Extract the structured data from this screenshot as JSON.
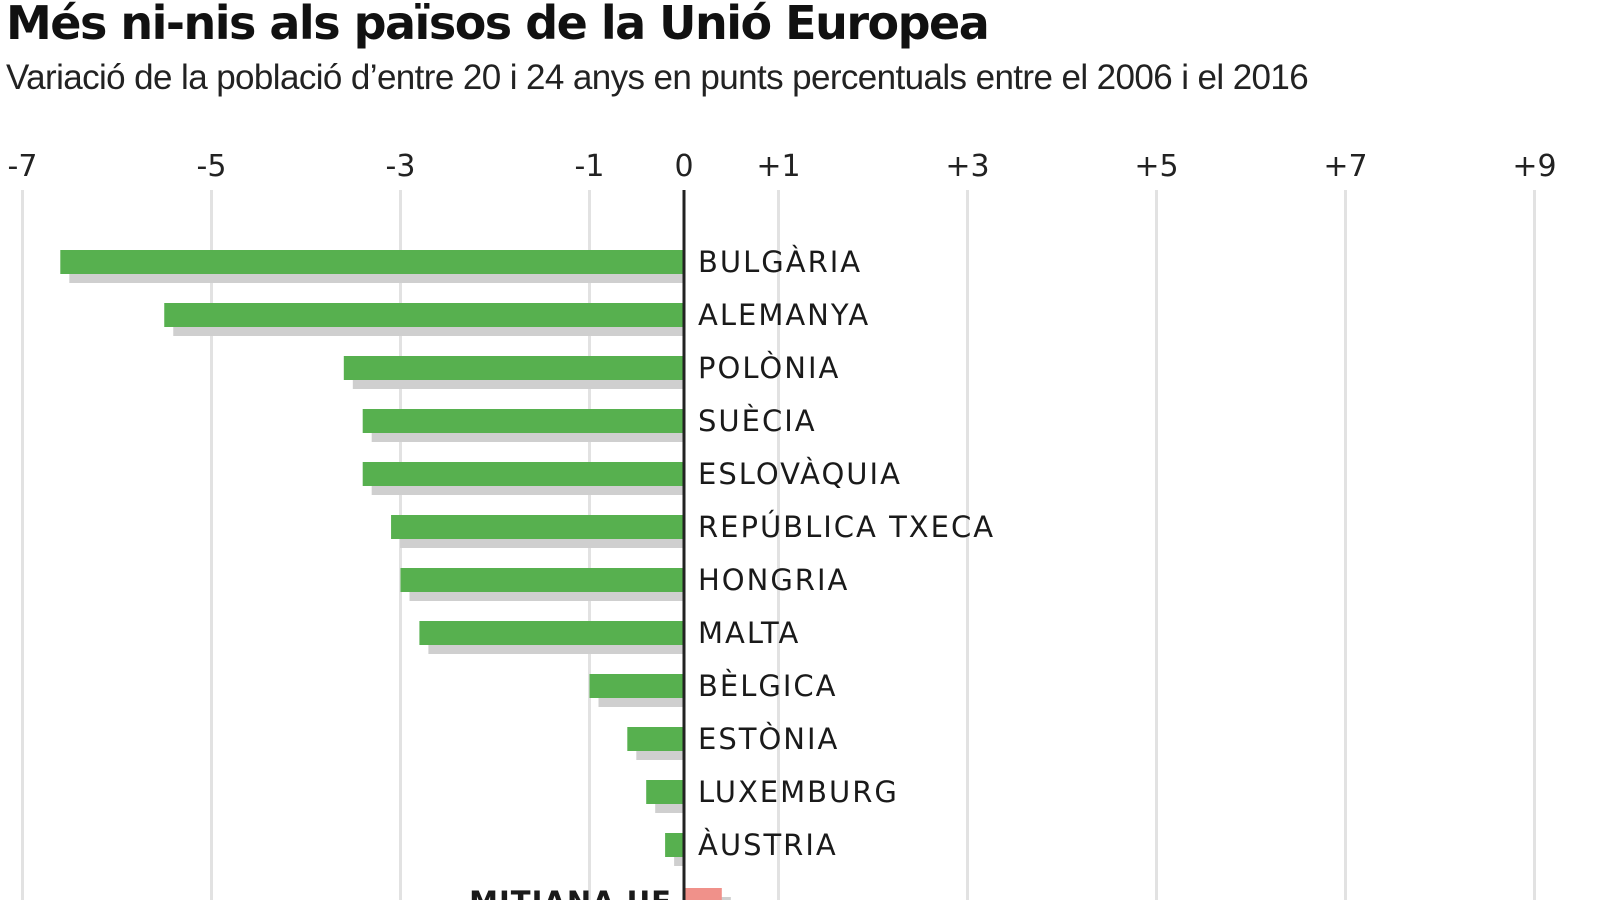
{
  "chart_data": {
    "type": "bar",
    "orientation": "horizontal",
    "title": "Més ni-nis als països de la Unió Europea",
    "subtitle": "Variació de la població d’entre 20 i 24 anys en punts percentuals entre el 2006 i el 2016",
    "xlim": [
      -7,
      9
    ],
    "x_ticks": [
      "-7",
      "-5",
      "-3",
      "-1",
      "0",
      "+1",
      "+3",
      "+5",
      "+7",
      "+9"
    ],
    "x_tick_values": [
      -7,
      -5,
      -3,
      -1,
      0,
      1,
      3,
      5,
      7,
      9
    ],
    "grid": true,
    "categories": [
      "BULGÀRIA",
      "ALEMANYA",
      "POLÒNIA",
      "SUÈCIA",
      "ESLOVÀQUIA",
      "REPÚBLICA TXECA",
      "HONGRIA",
      "MALTA",
      "BÈLGICA",
      "ESTÒNIA",
      "LUXEMBURG",
      "ÀUSTRIA"
    ],
    "values": [
      -6.6,
      -5.5,
      -3.6,
      -3.4,
      -3.4,
      -3.1,
      -3.0,
      -2.8,
      -1.0,
      -0.6,
      -0.4,
      -0.2
    ],
    "average": {
      "label": "MITJANA UE",
      "value": 0.4
    },
    "colors": {
      "bar": "#57b04f",
      "average": "#f0918a",
      "shadow": "#cfcfcf",
      "grid": "#e2e2e2",
      "axis": "#222222"
    }
  }
}
